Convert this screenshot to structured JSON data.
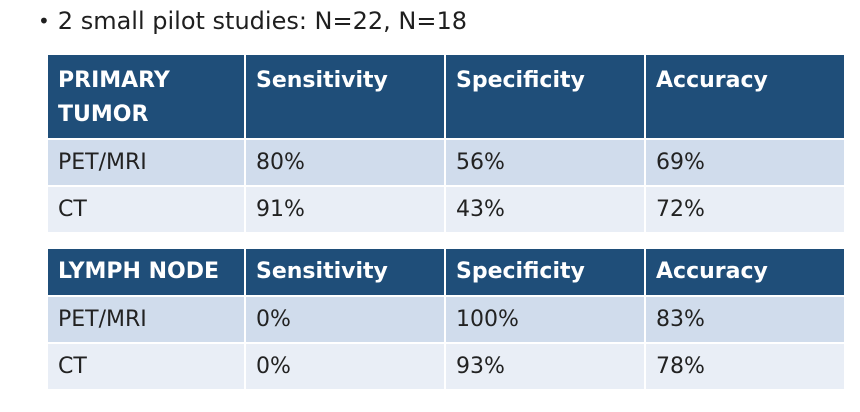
{
  "bullet": {
    "text": "2 small pilot studies: N=22, N=18"
  },
  "tables": [
    {
      "headers": [
        "PRIMARY TUMOR",
        "Sensitivity",
        "Specificity",
        "Accuracy"
      ],
      "rows": [
        [
          "PET/MRI",
          "80%",
          "56%",
          "69%"
        ],
        [
          "CT",
          "91%",
          "43%",
          "72%"
        ]
      ]
    },
    {
      "headers": [
        "LYMPH NODE",
        "Sensitivity",
        "Specificity",
        "Accuracy"
      ],
      "rows": [
        [
          "PET/MRI",
          "0%",
          "100%",
          "83%"
        ],
        [
          "CT",
          "0%",
          "93%",
          "78%"
        ]
      ]
    }
  ],
  "colors": {
    "header_bg": "#1f4e79",
    "row_dark": "#d0dcec",
    "row_light": "#e9eef6"
  }
}
